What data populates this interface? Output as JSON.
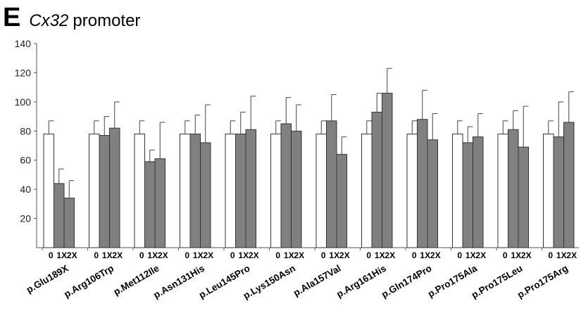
{
  "panel_letter": "E",
  "title_gene": "Cx32",
  "title_rest": "promoter",
  "colors": {
    "control_bar": "#ffffff",
    "mutant_bar": "#808080",
    "stroke": "#333333"
  },
  "chart_data": {
    "type": "bar",
    "title": "Cx32 promoter",
    "xlabel": "",
    "ylabel": "",
    "ylim": [
      0,
      140
    ],
    "yticks": [
      20,
      40,
      60,
      80,
      100,
      120,
      140
    ],
    "grid": false,
    "legend": "none",
    "conditions": [
      "0",
      "1X",
      "2X"
    ],
    "categories": [
      "p.Glu189X",
      "p.Arg106Trp",
      "p.Met112Ile",
      "p.Asn131His",
      "p.Leu145Pro",
      "p.Lys150Asn",
      "p.Ala157Val",
      "p.Arg161His",
      "p.Gln174Pro",
      "p.Pro175Ala",
      "p.Pro175Leu",
      "p.Pro175Arg"
    ],
    "series": [
      {
        "values": [
          78,
          78,
          78,
          78,
          78,
          78,
          78,
          78,
          78,
          78,
          78,
          78
        ],
        "errors": [
          9,
          9,
          9,
          9,
          9,
          9,
          9,
          9,
          9,
          9,
          9,
          9
        ]
      },
      {
        "values": [
          44,
          77,
          59,
          78,
          78,
          85,
          87,
          93,
          88,
          72,
          81,
          76
        ],
        "errors": [
          10,
          13,
          8,
          13,
          15,
          18,
          18,
          13,
          20,
          11,
          13,
          24
        ]
      },
      {
        "values": [
          34,
          82,
          61,
          72,
          81,
          80,
          64,
          106,
          74,
          76,
          69,
          86
        ],
        "errors": [
          12,
          18,
          25,
          26,
          23,
          18,
          12,
          17,
          18,
          16,
          28,
          21
        ]
      }
    ]
  }
}
